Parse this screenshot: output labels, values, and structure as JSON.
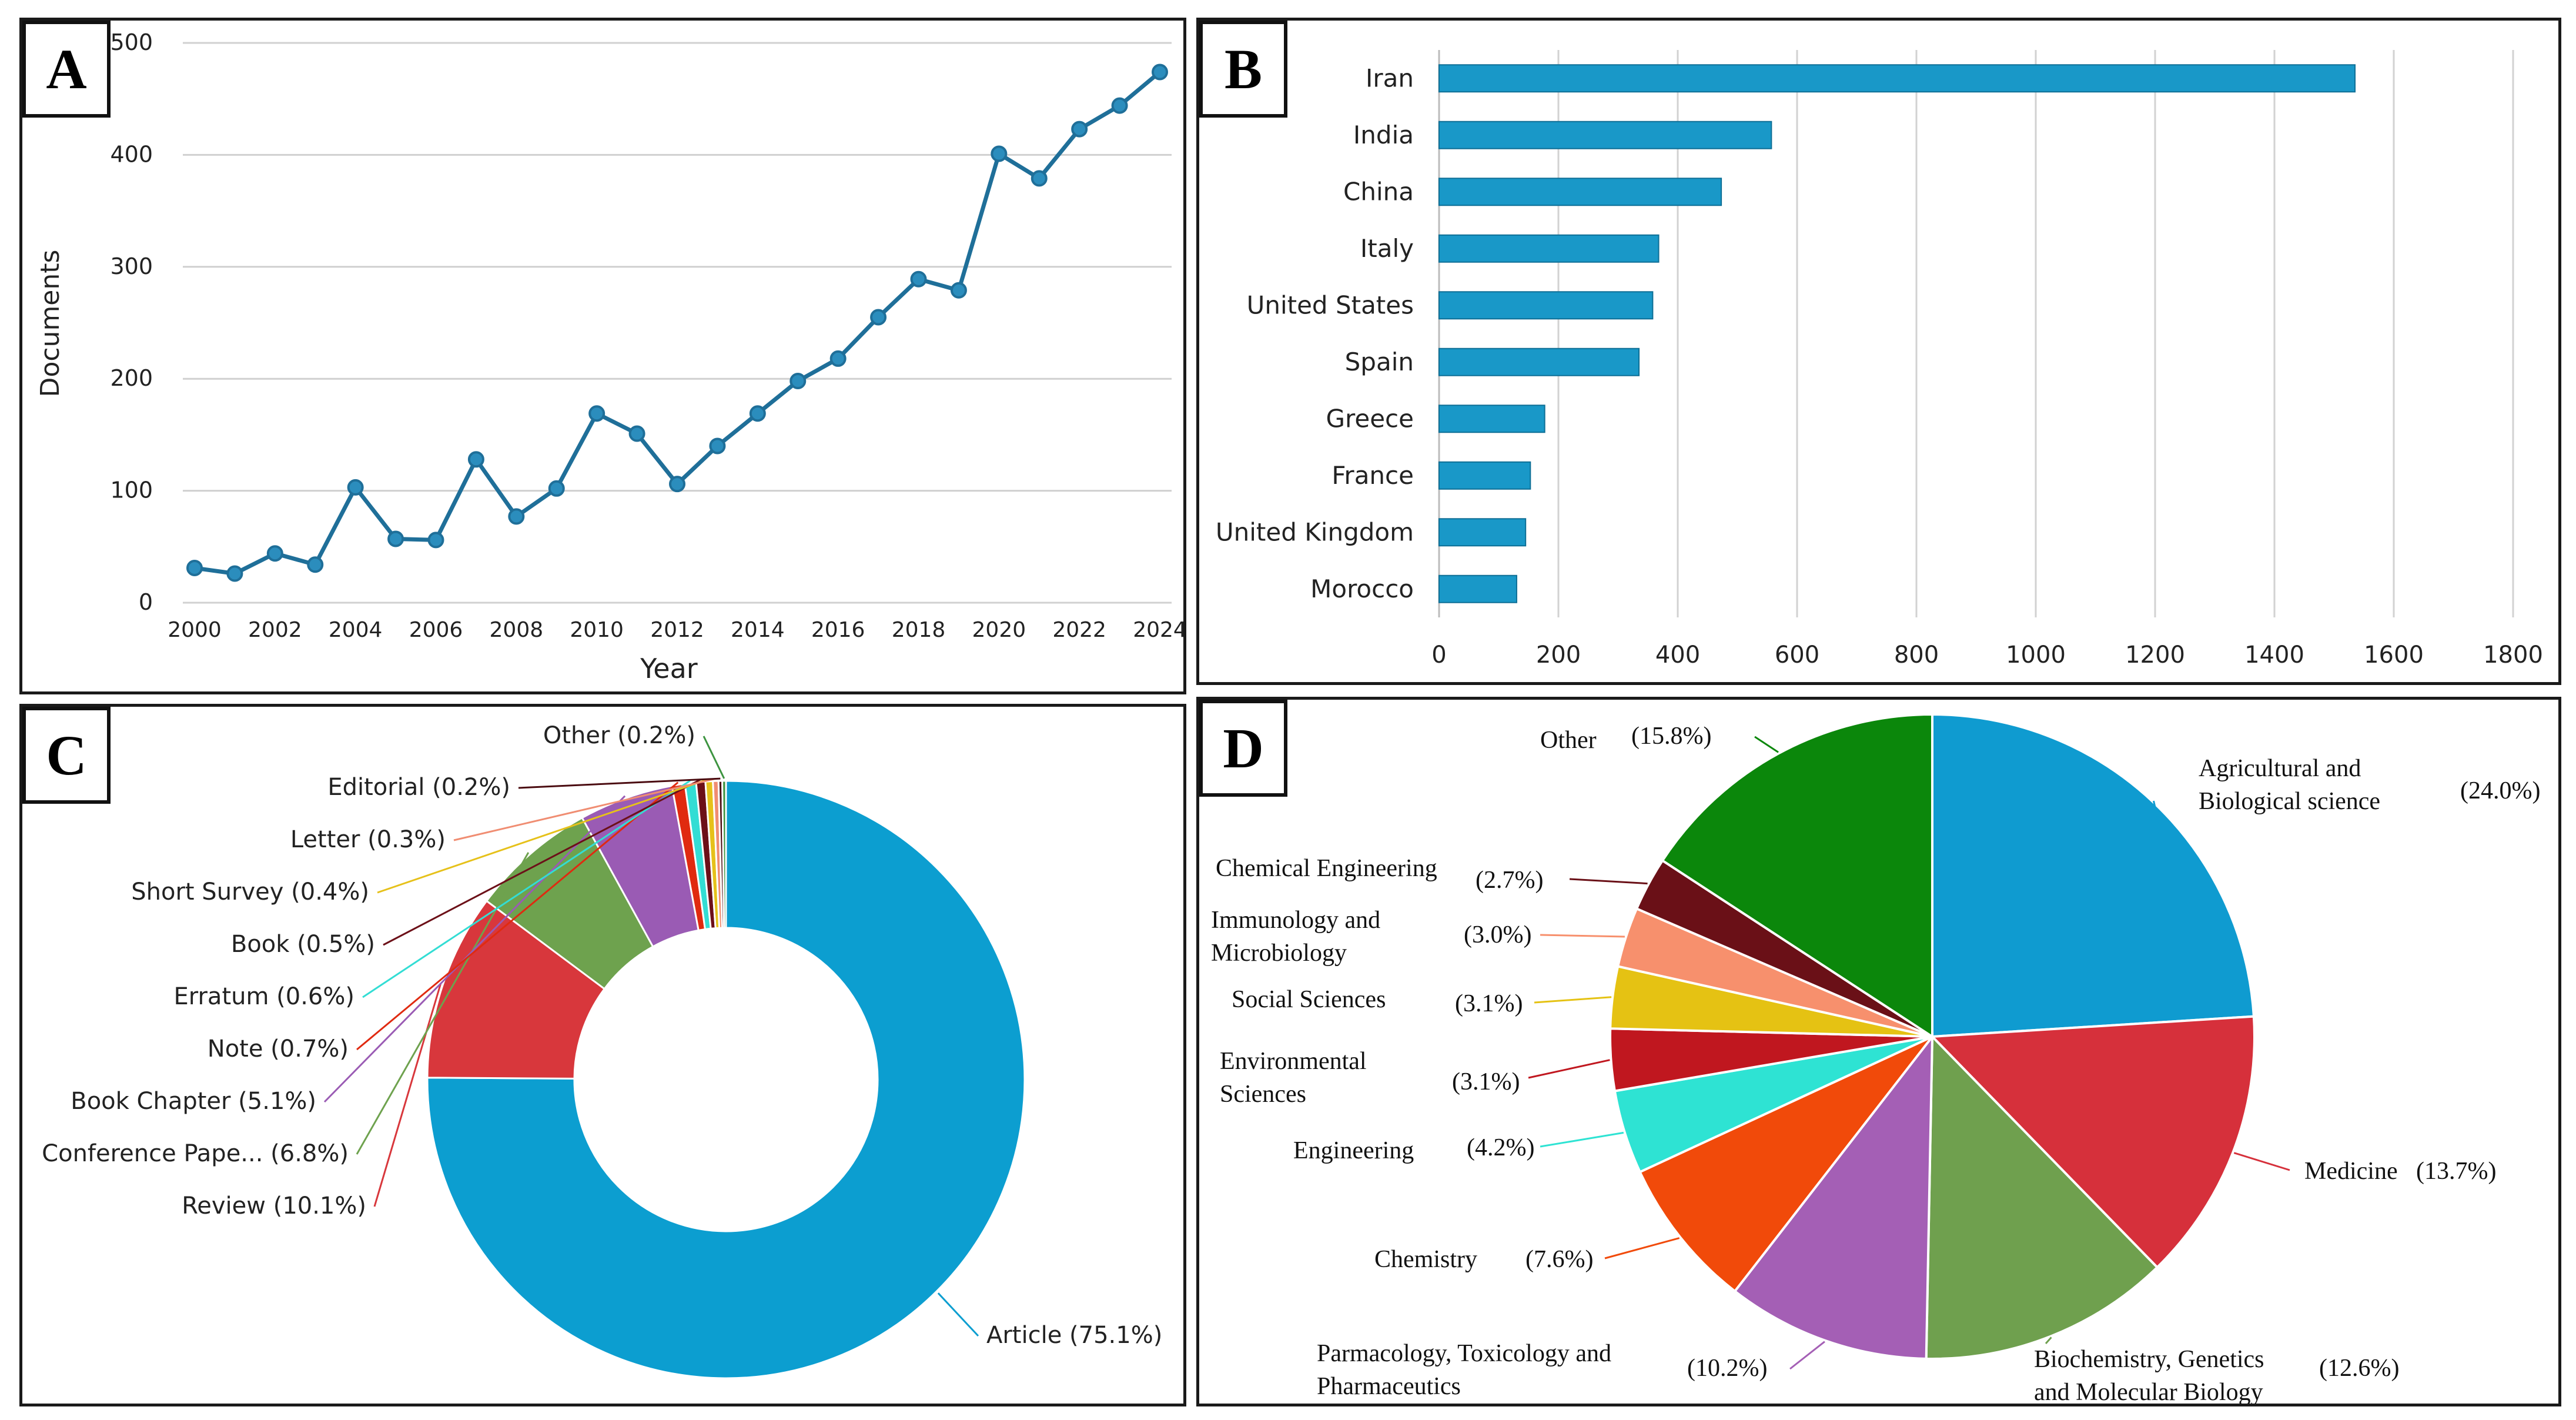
{
  "panels": {
    "a": "A",
    "b": "B",
    "c": "C",
    "d": "D"
  },
  "chart_data": [
    {
      "id": "A",
      "type": "line",
      "title": "",
      "xlabel": "Year",
      "ylabel": "Documents",
      "x": [
        2000,
        2001,
        2002,
        2003,
        2004,
        2005,
        2006,
        2007,
        2008,
        2009,
        2010,
        2011,
        2012,
        2013,
        2014,
        2015,
        2016,
        2017,
        2018,
        2019,
        2020,
        2021,
        2022,
        2023,
        2024
      ],
      "y": [
        31,
        26,
        44,
        34,
        103,
        57,
        56,
        128,
        77,
        102,
        169,
        151,
        106,
        140,
        169,
        198,
        218,
        255,
        289,
        279,
        401,
        379,
        423,
        444,
        474
      ],
      "xticks": [
        2000,
        2002,
        2004,
        2006,
        2008,
        2010,
        2012,
        2014,
        2016,
        2018,
        2020,
        2022,
        2024
      ],
      "yticks": [
        0,
        100,
        200,
        300,
        400,
        500
      ],
      "xlim": [
        2000,
        2024
      ],
      "ylim": [
        0,
        500
      ],
      "color": "#1f6f99",
      "grid": true
    },
    {
      "id": "B",
      "type": "bar",
      "orientation": "horizontal",
      "categories": [
        "Iran",
        "India",
        "China",
        "Italy",
        "United States",
        "Spain",
        "Greece",
        "France",
        "United Kingdom",
        "Morocco"
      ],
      "values": [
        1535,
        557,
        473,
        368,
        358,
        335,
        177,
        153,
        145,
        130
      ],
      "xticks": [
        0,
        200,
        400,
        600,
        800,
        1000,
        1200,
        1400,
        1600,
        1800
      ],
      "xlim": [
        0,
        1800
      ],
      "color": "#1998c8",
      "grid": true
    },
    {
      "id": "C",
      "type": "pie",
      "donut": true,
      "slices": [
        {
          "label": "Article (75.1%)",
          "value": 75.1,
          "color": "#0c9ed0"
        },
        {
          "label": "Review (10.1%)",
          "value": 10.1,
          "color": "#d8373c"
        },
        {
          "label": "Conference Pape... (6.8%)",
          "value": 6.8,
          "color": "#6ea24e"
        },
        {
          "label": "Book Chapter (5.1%)",
          "value": 5.1,
          "color": "#9a5bb4"
        },
        {
          "label": "Note (0.7%)",
          "value": 0.7,
          "color": "#e02a10"
        },
        {
          "label": "Erratum (0.6%)",
          "value": 0.6,
          "color": "#33ddd4"
        },
        {
          "label": "Book (0.5%)",
          "value": 0.5,
          "color": "#6c1018"
        },
        {
          "label": "Short Survey (0.4%)",
          "value": 0.4,
          "color": "#e6c11a"
        },
        {
          "label": "Letter (0.3%)",
          "value": 0.3,
          "color": "#f08d72"
        },
        {
          "label": "Editorial (0.2%)",
          "value": 0.2,
          "color": "#4a0b10"
        },
        {
          "label": "Other (0.2%)",
          "value": 0.2,
          "color": "#3d9440"
        }
      ]
    },
    {
      "id": "D",
      "type": "pie",
      "slices": [
        {
          "label": "Agricultural and Biological science",
          "pct": "(24.0%)",
          "value": 24.0,
          "color": "#0f9bd0"
        },
        {
          "label": "Medicine",
          "pct": "(13.7%)",
          "value": 13.7,
          "color": "#d6303b"
        },
        {
          "label": "Biochemistry, Genetics and Molecular Biology",
          "pct": "(12.6%)",
          "value": 12.6,
          "color": "#6fa04e"
        },
        {
          "label": "Parmacology, Toxicology and Pharmaceutics",
          "pct": "(10.2%)",
          "value": 10.2,
          "color": "#a45fb5"
        },
        {
          "label": "Chemistry",
          "pct": "(7.6%)",
          "value": 7.6,
          "color": "#f14a0a"
        },
        {
          "label": "Engineering",
          "pct": "(4.2%)",
          "value": 4.2,
          "color": "#2ee3d3"
        },
        {
          "label": "Environmental Sciences",
          "pct": "(3.1%)",
          "value": 3.1,
          "color": "#c0171f"
        },
        {
          "label": "Social Sciences",
          "pct": "(3.1%)",
          "value": 3.1,
          "color": "#e5c213"
        },
        {
          "label": "Immunology and Microbiology",
          "pct": "(3.0%)",
          "value": 3.0,
          "color": "#f7906d"
        },
        {
          "label": "Chemical Engineering",
          "pct": "(2.7%)",
          "value": 2.7,
          "color": "#6a1017"
        },
        {
          "label": "Other",
          "pct": "(15.8%)",
          "value": 15.8,
          "color": "#0b870b"
        }
      ]
    }
  ]
}
